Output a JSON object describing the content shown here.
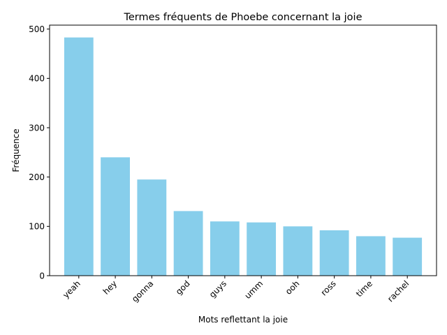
{
  "chart_data": {
    "type": "bar",
    "title": "Termes fréquents de Phoebe concernant la joie",
    "xlabel": "Mots reflettant la joie",
    "ylabel": "Fréquence",
    "categories": [
      "yeah",
      "hey",
      "gonna",
      "god",
      "guys",
      "umm",
      "ooh",
      "ross",
      "time",
      "rachel"
    ],
    "values": [
      483,
      240,
      195,
      131,
      110,
      108,
      100,
      92,
      80,
      77
    ],
    "ylim": [
      0,
      508
    ],
    "yticks": [
      0,
      100,
      200,
      300,
      400,
      500
    ],
    "bar_color": "#87ceeb",
    "grid": false,
    "x_tick_rotation": 45
  }
}
